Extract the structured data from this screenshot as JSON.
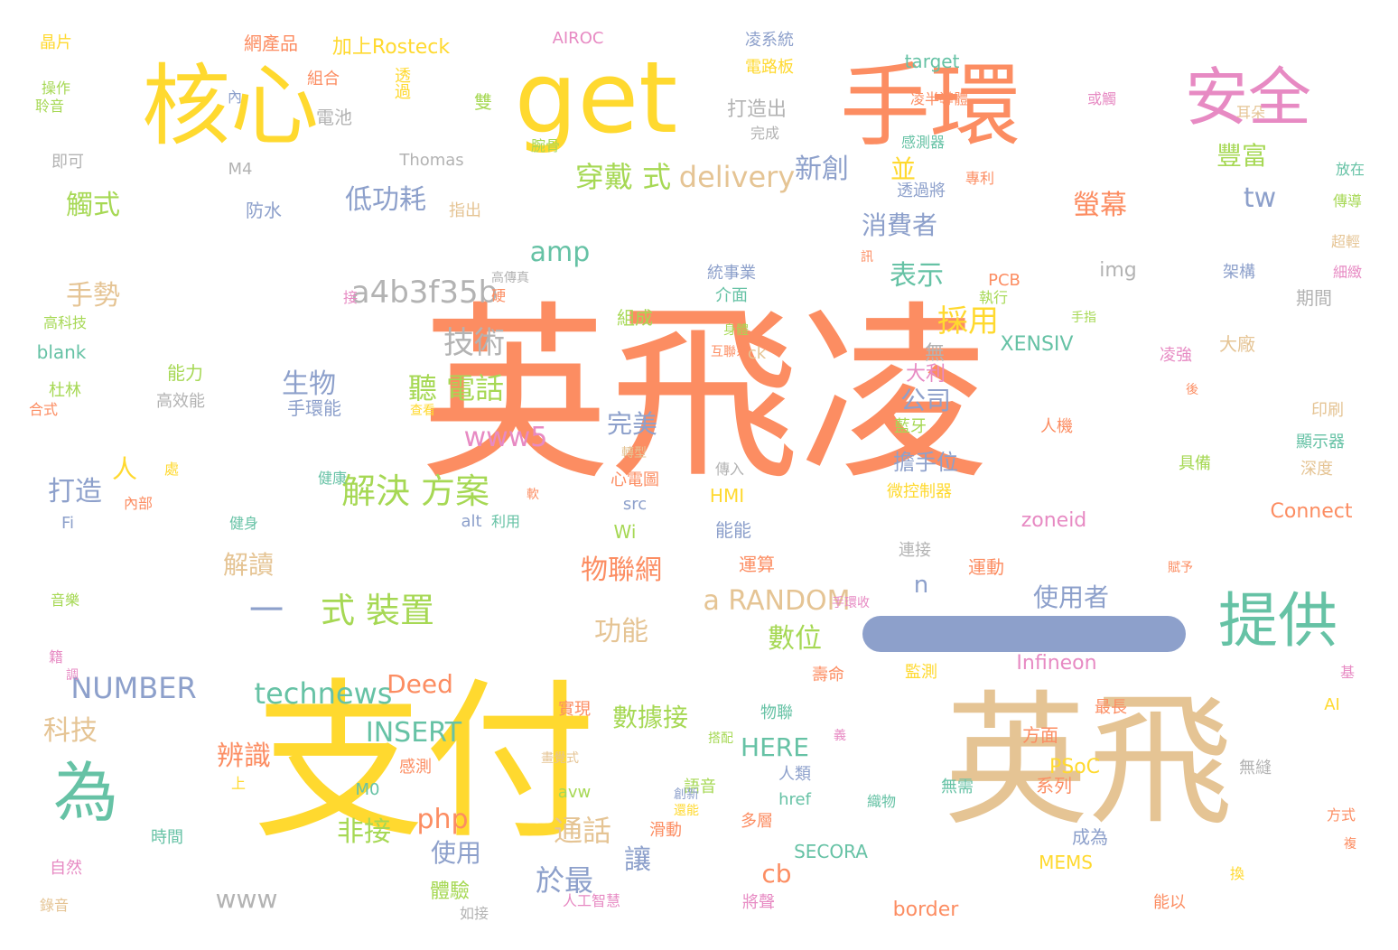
{
  "palette": {
    "orange": "#fc8d62",
    "yellow": "#ffd92f",
    "tan": "#e5c494",
    "green": "#a6d854",
    "teal": "#66c2a5",
    "blue": "#8da0cb",
    "pink": "#e78ac3",
    "gray": "#b3b3b3"
  },
  "words": [
    {
      "text": "英飛凌",
      "color": "orange"
    },
    {
      "text": "支付",
      "color": "yellow"
    },
    {
      "text": "英飛",
      "color": "tan"
    },
    {
      "text": "核心",
      "color": "yellow"
    },
    {
      "text": "get",
      "color": "yellow"
    },
    {
      "text": "手環",
      "color": "orange"
    },
    {
      "text": "安全",
      "color": "pink"
    },
    {
      "text": "提供",
      "color": "teal"
    },
    {
      "text": "為",
      "color": "teal"
    },
    {
      "text": "一",
      "color": "blue"
    },
    {
      "text": "式 裝置",
      "color": "green"
    },
    {
      "text": "解決 方案",
      "color": "green"
    },
    {
      "text": "穿戴 式",
      "color": "green"
    },
    {
      "text": "delivery",
      "color": "tan"
    },
    {
      "text": "豐富",
      "color": "green"
    },
    {
      "text": "NUMBER",
      "color": "blue"
    },
    {
      "text": "technews",
      "color": "teal"
    },
    {
      "text": "Deed",
      "color": "orange"
    },
    {
      "text": "使用者",
      "color": "blue"
    },
    {
      "text": "a RANDOM",
      "color": "tan"
    },
    {
      "text": "數位",
      "color": "green"
    },
    {
      "text": "物聯網",
      "color": "orange"
    },
    {
      "text": "功能",
      "color": "tan"
    },
    {
      "text": "採用",
      "color": "yellow"
    },
    {
      "text": "amp",
      "color": "teal"
    },
    {
      "text": "a4b3f35b",
      "color": "gray"
    },
    {
      "text": "手勢",
      "color": "tan"
    },
    {
      "text": "技術",
      "color": "gray"
    },
    {
      "text": "聽 電話",
      "color": "green"
    },
    {
      "text": "生物",
      "color": "blue"
    },
    {
      "text": "觸式",
      "color": "green"
    },
    {
      "text": "低功耗",
      "color": "blue"
    },
    {
      "text": "新創",
      "color": "blue"
    },
    {
      "text": "並",
      "color": "yellow"
    },
    {
      "text": "tw",
      "color": "blue"
    },
    {
      "text": "螢幕",
      "color": "orange"
    },
    {
      "text": "消費者",
      "color": "blue"
    },
    {
      "text": "表示",
      "color": "teal"
    },
    {
      "text": "公司",
      "color": "blue"
    },
    {
      "text": "www5",
      "color": "pink"
    },
    {
      "text": "打造",
      "color": "blue"
    },
    {
      "text": "解讀",
      "color": "tan"
    },
    {
      "text": "INSERT",
      "color": "teal"
    },
    {
      "text": "科技",
      "color": "tan"
    },
    {
      "text": "辨識",
      "color": "orange"
    },
    {
      "text": "非接",
      "color": "green"
    },
    {
      "text": "php",
      "color": "orange"
    },
    {
      "text": "使用",
      "color": "blue"
    },
    {
      "text": "通話",
      "color": "tan"
    },
    {
      "text": "於最",
      "color": "blue"
    },
    {
      "text": "讓",
      "color": "blue"
    },
    {
      "text": "www",
      "color": "gray"
    },
    {
      "text": "體驗",
      "color": "green"
    },
    {
      "text": "數據接",
      "color": "green"
    },
    {
      "text": "HERE",
      "color": "teal"
    },
    {
      "text": "完美",
      "color": "blue"
    },
    {
      "text": "人",
      "color": "yellow"
    },
    {
      "text": "n",
      "color": "blue"
    },
    {
      "text": "cb",
      "color": "orange"
    },
    {
      "text": "無",
      "color": "gray"
    },
    {
      "text": "擔手位",
      "color": "blue"
    },
    {
      "text": "大利",
      "color": "pink"
    },
    {
      "text": "XENSIV",
      "color": "teal"
    },
    {
      "text": "img",
      "color": "gray"
    },
    {
      "text": "zoneid",
      "color": "pink"
    },
    {
      "text": "Connect",
      "color": "orange"
    },
    {
      "text": "Infineon",
      "color": "pink"
    },
    {
      "text": "PSoC",
      "color": "yellow"
    },
    {
      "text": "border",
      "color": "orange"
    },
    {
      "text": "SECORA",
      "color": "teal"
    },
    {
      "text": "MEMS",
      "color": "yellow"
    },
    {
      "text": "target",
      "color": "teal"
    },
    {
      "text": "AIROC",
      "color": "pink"
    },
    {
      "text": "Thomas",
      "color": "gray"
    },
    {
      "text": "加上Rosteck",
      "color": "yellow"
    },
    {
      "text": "打造出",
      "color": "gray"
    },
    {
      "text": "凌系統",
      "color": "blue"
    },
    {
      "text": "電路板",
      "color": "yellow"
    },
    {
      "text": "網產品",
      "color": "orange"
    },
    {
      "text": "組合",
      "color": "orange"
    },
    {
      "text": "透過",
      "color": "yellow"
    },
    {
      "text": "雙",
      "color": "green"
    },
    {
      "text": "電池",
      "color": "gray"
    },
    {
      "text": "晶片",
      "color": "yellow"
    },
    {
      "text": "操作",
      "color": "green"
    },
    {
      "text": "聆音",
      "color": "green"
    },
    {
      "text": "即可",
      "color": "gray"
    },
    {
      "text": "M4",
      "color": "gray"
    },
    {
      "text": "防水",
      "color": "blue"
    },
    {
      "text": "指出",
      "color": "tan"
    },
    {
      "text": "高傳真",
      "color": "gray"
    },
    {
      "text": "統事業",
      "color": "blue"
    },
    {
      "text": "介面",
      "color": "teal"
    },
    {
      "text": "組成",
      "color": "green"
    },
    {
      "text": "能力",
      "color": "green"
    },
    {
      "text": "高效能",
      "color": "gray"
    },
    {
      "text": "手環能",
      "color": "blue"
    },
    {
      "text": "blank",
      "color": "teal"
    },
    {
      "text": "杜林",
      "color": "green"
    },
    {
      "text": "高科技",
      "color": "green"
    },
    {
      "text": "心電圖",
      "color": "orange"
    },
    {
      "text": "src",
      "color": "blue"
    },
    {
      "text": "HMI",
      "color": "yellow"
    },
    {
      "text": "alt",
      "color": "blue"
    },
    {
      "text": "Wi",
      "color": "green"
    },
    {
      "text": "能能",
      "color": "blue"
    },
    {
      "text": "運算",
      "color": "orange"
    },
    {
      "text": "藍牙",
      "color": "green"
    },
    {
      "text": "微控制器",
      "color": "yellow"
    },
    {
      "text": "人機",
      "color": "orange"
    },
    {
      "text": "架構",
      "color": "blue"
    },
    {
      "text": "期間",
      "color": "gray"
    },
    {
      "text": "大廠",
      "color": "tan"
    },
    {
      "text": "凌強",
      "color": "pink"
    },
    {
      "text": "印刷",
      "color": "tan"
    },
    {
      "text": "顯示器",
      "color": "teal"
    },
    {
      "text": "深度",
      "color": "tan"
    },
    {
      "text": "具備",
      "color": "green"
    },
    {
      "text": "運動",
      "color": "orange"
    },
    {
      "text": "連接",
      "color": "gray"
    },
    {
      "text": "監測",
      "color": "yellow"
    },
    {
      "text": "壽命",
      "color": "orange"
    },
    {
      "text": "感測",
      "color": "orange"
    },
    {
      "text": "實現",
      "color": "orange"
    },
    {
      "text": "語音",
      "color": "green"
    },
    {
      "text": "物聯",
      "color": "teal"
    },
    {
      "text": "方面",
      "color": "orange"
    },
    {
      "text": "系列",
      "color": "orange"
    },
    {
      "text": "成為",
      "color": "blue"
    },
    {
      "text": "人類",
      "color": "blue"
    },
    {
      "text": "href",
      "color": "teal"
    },
    {
      "text": "最長",
      "color": "orange"
    },
    {
      "text": "M0",
      "color": "teal"
    },
    {
      "text": "avw",
      "color": "green"
    },
    {
      "text": "滑動",
      "color": "orange"
    },
    {
      "text": "多層",
      "color": "orange"
    },
    {
      "text": "無需",
      "color": "teal"
    },
    {
      "text": "織物",
      "color": "teal"
    },
    {
      "text": "時間",
      "color": "teal"
    },
    {
      "text": "自然",
      "color": "pink"
    },
    {
      "text": "錄音",
      "color": "tan"
    },
    {
      "text": "如接",
      "color": "gray"
    },
    {
      "text": "人工智慧",
      "color": "pink"
    },
    {
      "text": "將聲",
      "color": "pink"
    },
    {
      "text": "能以",
      "color": "orange"
    },
    {
      "text": "方式",
      "color": "orange"
    },
    {
      "text": "無縫",
      "color": "gray"
    },
    {
      "text": "AI",
      "color": "yellow"
    },
    {
      "text": "PCB",
      "color": "orange"
    },
    {
      "text": "ck",
      "color": "tan"
    },
    {
      "text": "Fi",
      "color": "blue"
    },
    {
      "text": "內部",
      "color": "orange"
    },
    {
      "text": "利用",
      "color": "teal"
    },
    {
      "text": "健康",
      "color": "teal"
    },
    {
      "text": "傳入",
      "color": "gray"
    },
    {
      "text": "完成",
      "color": "gray"
    },
    {
      "text": "感測器",
      "color": "teal"
    },
    {
      "text": "透過將",
      "color": "blue"
    },
    {
      "text": "專利",
      "color": "orange"
    },
    {
      "text": "或觸",
      "color": "pink"
    },
    {
      "text": "凌半導體",
      "color": "orange"
    },
    {
      "text": "耳朵",
      "color": "tan"
    },
    {
      "text": "放在",
      "color": "teal"
    },
    {
      "text": "傳導",
      "color": "green"
    },
    {
      "text": "超輕",
      "color": "tan"
    },
    {
      "text": "細緻",
      "color": "pink"
    },
    {
      "text": "執行",
      "color": "green"
    },
    {
      "text": "互聯系",
      "color": "orange"
    },
    {
      "text": "身體",
      "color": "green"
    },
    {
      "text": "手指",
      "color": "green"
    },
    {
      "text": "轉型",
      "color": "tan"
    },
    {
      "text": "手環收",
      "color": "pink"
    },
    {
      "text": "賦予",
      "color": "orange"
    },
    {
      "text": "音樂",
      "color": "green"
    },
    {
      "text": "搭配",
      "color": "green"
    },
    {
      "text": "畫覺式",
      "color": "tan"
    },
    {
      "text": "還能",
      "color": "yellow"
    },
    {
      "text": "創新",
      "color": "blue"
    },
    {
      "text": "查看",
      "color": "yellow"
    },
    {
      "text": "健身",
      "color": "teal"
    },
    {
      "text": "合式",
      "color": "orange"
    },
    {
      "text": "腕骨",
      "color": "green"
    },
    {
      "text": "內",
      "color": "blue"
    },
    {
      "text": "接",
      "color": "pink"
    },
    {
      "text": "硬",
      "color": "orange"
    },
    {
      "text": "訊",
      "color": "orange"
    },
    {
      "text": "處",
      "color": "yellow"
    },
    {
      "text": "軟",
      "color": "orange"
    },
    {
      "text": "後",
      "color": "orange"
    },
    {
      "text": "基",
      "color": "pink"
    },
    {
      "text": "義",
      "color": "pink"
    },
    {
      "text": "上",
      "color": "yellow"
    },
    {
      "text": "換",
      "color": "yellow"
    },
    {
      "text": "複",
      "color": "orange"
    },
    {
      "text": "籍",
      "color": "pink"
    },
    {
      "text": "調",
      "color": "pink"
    },
    {
      "text": "耳",
      "color": "orange"
    }
  ]
}
